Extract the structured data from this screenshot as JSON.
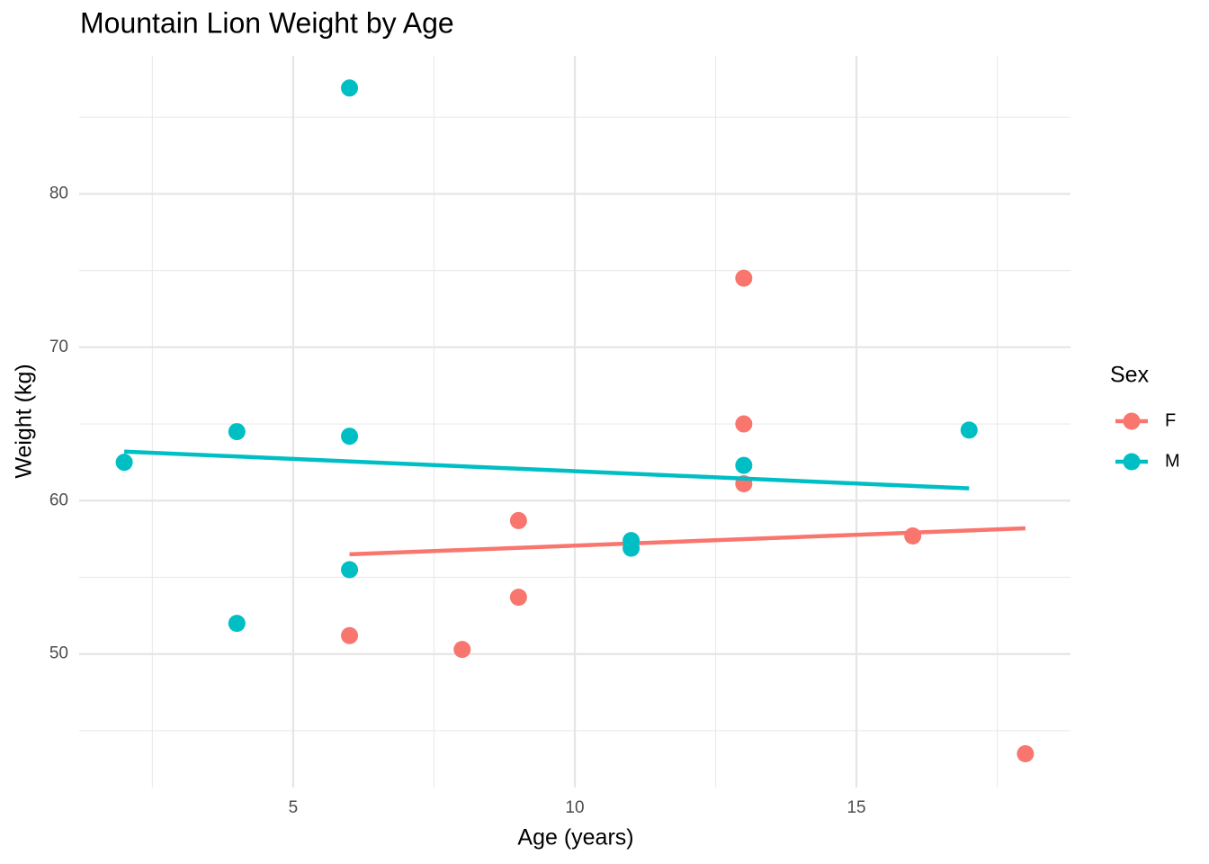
{
  "chart_data": {
    "type": "scatter",
    "title": "Mountain Lion Weight by Age",
    "x_label": "Age (years)",
    "y_label": "Weight (kg)",
    "legend_title": "Sex",
    "xlim": [
      1.2,
      18.8
    ],
    "ylim": [
      41.3,
      89.0
    ],
    "xticks": [
      5,
      10,
      15
    ],
    "yticks": [
      50,
      60,
      70,
      80
    ],
    "minor_xgrid": [
      2.5,
      7.5,
      12.5,
      17.5
    ],
    "minor_ygrid": [
      45,
      55,
      65,
      75,
      85
    ],
    "grid": true,
    "legend": "right",
    "series": [
      {
        "name": "F",
        "color": "#F8766D",
        "x": [
          13,
          13,
          13,
          9,
          16,
          9,
          6,
          8,
          18
        ],
        "values": [
          74.5,
          65.0,
          61.1,
          58.7,
          57.7,
          53.7,
          51.2,
          50.3,
          43.5
        ],
        "fit_x": [
          6,
          18
        ],
        "fit_values": [
          56.5,
          58.2
        ]
      },
      {
        "name": "M",
        "color": "#00BFC4",
        "x": [
          6,
          2,
          4,
          6,
          13,
          17,
          11,
          11,
          6,
          4
        ],
        "values": [
          86.9,
          62.5,
          64.5,
          64.2,
          62.3,
          64.6,
          57.4,
          56.9,
          55.5,
          52.0
        ],
        "fit_x": [
          2,
          17
        ],
        "fit_values": [
          63.2,
          60.8
        ]
      }
    ]
  }
}
